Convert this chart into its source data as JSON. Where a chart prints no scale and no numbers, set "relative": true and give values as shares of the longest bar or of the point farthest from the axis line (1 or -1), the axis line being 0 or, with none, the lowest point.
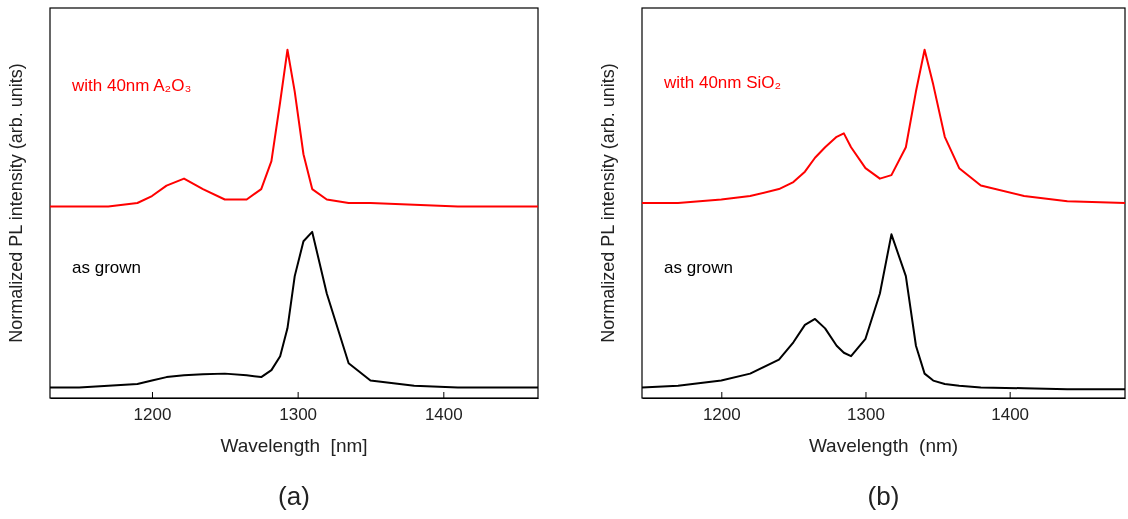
{
  "chart_data": [
    {
      "type": "line",
      "title": "(a)",
      "xlabel": "Wavelength  [nm]",
      "ylabel": "Normalized PL intensity (arb. units)",
      "relative": true,
      "xlim": [
        1130,
        1465
      ],
      "xticks": [
        1200,
        1300,
        1400
      ],
      "tick_labels": "x",
      "grid": false,
      "x": [
        1130,
        1150,
        1170,
        1190,
        1200,
        1210,
        1222,
        1235,
        1250,
        1265,
        1275,
        1282,
        1288,
        1293,
        1298,
        1304,
        1310,
        1320,
        1335,
        1350,
        1380,
        1410,
        1440,
        1465
      ],
      "series": [
        {
          "name": "with 40nm A₂O₃",
          "color": "#ff0000",
          "values": [
            0.55,
            0.55,
            0.55,
            0.56,
            0.58,
            0.61,
            0.63,
            0.6,
            0.57,
            0.57,
            0.6,
            0.68,
            0.85,
            1,
            0.88,
            0.7,
            0.6,
            0.57,
            0.56,
            0.56,
            0.555,
            0.55,
            0.55,
            0.55
          ]
        },
        {
          "name": "as grown",
          "color": "#000000",
          "values": [
            0.03,
            0.03,
            0.035,
            0.04,
            0.05,
            0.06,
            0.065,
            0.068,
            0.07,
            0.065,
            0.06,
            0.08,
            0.12,
            0.2,
            0.35,
            0.45,
            0.477,
            0.3,
            0.1,
            0.05,
            0.035,
            0.03,
            0.03,
            0.03
          ]
        }
      ]
    },
    {
      "type": "line",
      "title": "(b)",
      "xlabel": "Wavelength  (nm)",
      "ylabel": "Normalized PL intensity (arb. units)",
      "relative": true,
      "xlim": [
        1145,
        1480
      ],
      "xticks": [
        1200,
        1300,
        1400
      ],
      "tick_labels": "x",
      "grid": false,
      "x": [
        1145,
        1170,
        1200,
        1220,
        1240,
        1250,
        1258,
        1265,
        1272,
        1280,
        1285,
        1290,
        1300,
        1310,
        1318,
        1328,
        1335,
        1341,
        1347,
        1355,
        1365,
        1380,
        1410,
        1440,
        1480
      ],
      "series": [
        {
          "name": "with 40nm SiO₂",
          "color": "#ff0000",
          "values": [
            0.56,
            0.56,
            0.57,
            0.58,
            0.6,
            0.62,
            0.65,
            0.69,
            0.72,
            0.75,
            0.76,
            0.72,
            0.66,
            0.63,
            0.64,
            0.72,
            0.88,
            1,
            0.9,
            0.75,
            0.66,
            0.61,
            0.58,
            0.565,
            0.56
          ]
        },
        {
          "name": "as grown",
          "color": "#000000",
          "values": [
            0.03,
            0.035,
            0.05,
            0.07,
            0.11,
            0.16,
            0.21,
            0.227,
            0.2,
            0.15,
            0.13,
            0.12,
            0.17,
            0.3,
            0.47,
            0.35,
            0.15,
            0.07,
            0.05,
            0.04,
            0.035,
            0.03,
            0.028,
            0.025,
            0.025
          ]
        }
      ]
    }
  ]
}
